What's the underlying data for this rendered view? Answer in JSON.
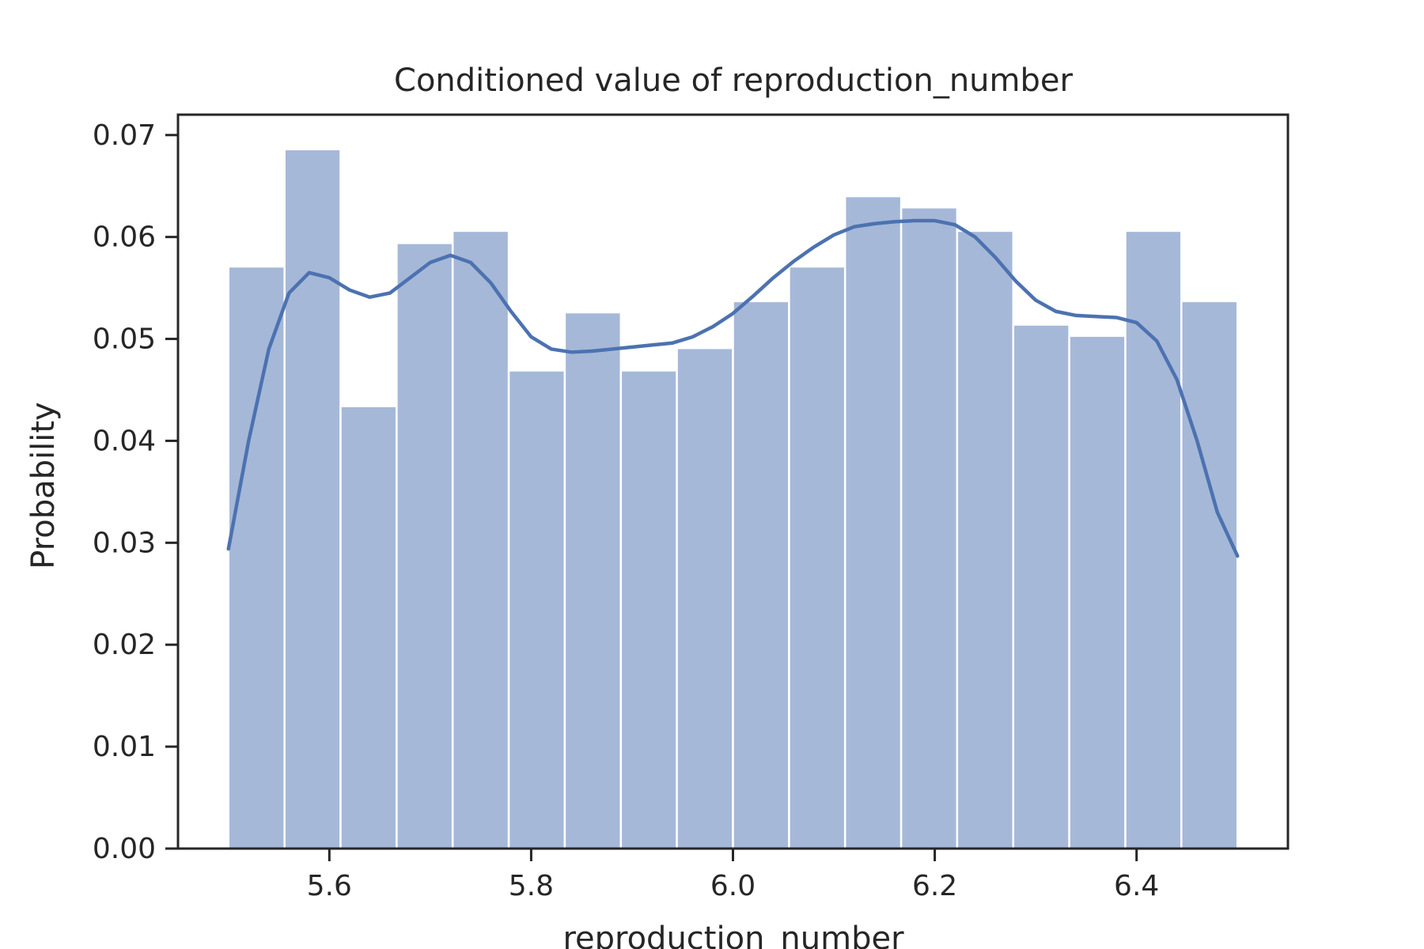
{
  "chart_data": {
    "type": "bar",
    "title": "Conditioned value of reproduction_number",
    "xlabel": "reproduction_number",
    "ylabel": "Probability",
    "xlim": [
      5.45,
      6.55
    ],
    "ylim": [
      0.0,
      0.072
    ],
    "xticks": [
      "5.6",
      "5.8",
      "6.0",
      "6.2",
      "6.4"
    ],
    "yticks": [
      "0.00",
      "0.01",
      "0.02",
      "0.03",
      "0.04",
      "0.05",
      "0.06",
      "0.07"
    ],
    "grid": false,
    "bins": {
      "edges": [
        5.5,
        5.5556,
        5.6111,
        5.6667,
        5.7222,
        5.7778,
        5.8333,
        5.8889,
        5.9444,
        6.0,
        6.0556,
        6.1111,
        6.1667,
        6.2222,
        6.2778,
        6.3333,
        6.3889,
        6.4444,
        6.5
      ],
      "values": [
        0.0571,
        0.0686,
        0.0434,
        0.0594,
        0.0606,
        0.0469,
        0.0526,
        0.0469,
        0.0491,
        0.0537,
        0.0571,
        0.064,
        0.0629,
        0.0606,
        0.0514,
        0.0503,
        0.0606,
        0.0537
      ]
    },
    "kde": {
      "x": [
        5.5,
        5.52,
        5.54,
        5.56,
        5.58,
        5.6,
        5.62,
        5.64,
        5.66,
        5.68,
        5.7,
        5.72,
        5.74,
        5.76,
        5.78,
        5.8,
        5.82,
        5.84,
        5.86,
        5.88,
        5.9,
        5.92,
        5.94,
        5.96,
        5.98,
        6.0,
        6.02,
        6.04,
        6.06,
        6.08,
        6.1,
        6.12,
        6.14,
        6.16,
        6.18,
        6.2,
        6.22,
        6.24,
        6.26,
        6.28,
        6.3,
        6.32,
        6.34,
        6.36,
        6.38,
        6.4,
        6.42,
        6.44,
        6.46,
        6.48,
        6.5
      ],
      "y": [
        0.0294,
        0.04,
        0.049,
        0.0545,
        0.0565,
        0.056,
        0.0548,
        0.0541,
        0.0545,
        0.056,
        0.0575,
        0.0582,
        0.0575,
        0.0555,
        0.0527,
        0.0502,
        0.049,
        0.0487,
        0.0488,
        0.049,
        0.0492,
        0.0494,
        0.0496,
        0.0502,
        0.0512,
        0.0525,
        0.0542,
        0.056,
        0.0576,
        0.059,
        0.0602,
        0.061,
        0.0613,
        0.0615,
        0.0616,
        0.0616,
        0.0612,
        0.06,
        0.058,
        0.0557,
        0.0538,
        0.0527,
        0.0523,
        0.0522,
        0.0521,
        0.0516,
        0.0498,
        0.046,
        0.04,
        0.033,
        0.0287
      ]
    },
    "colors": {
      "bar": "#a6b8d8",
      "line": "#4c72b0",
      "axis": "#262626"
    }
  }
}
